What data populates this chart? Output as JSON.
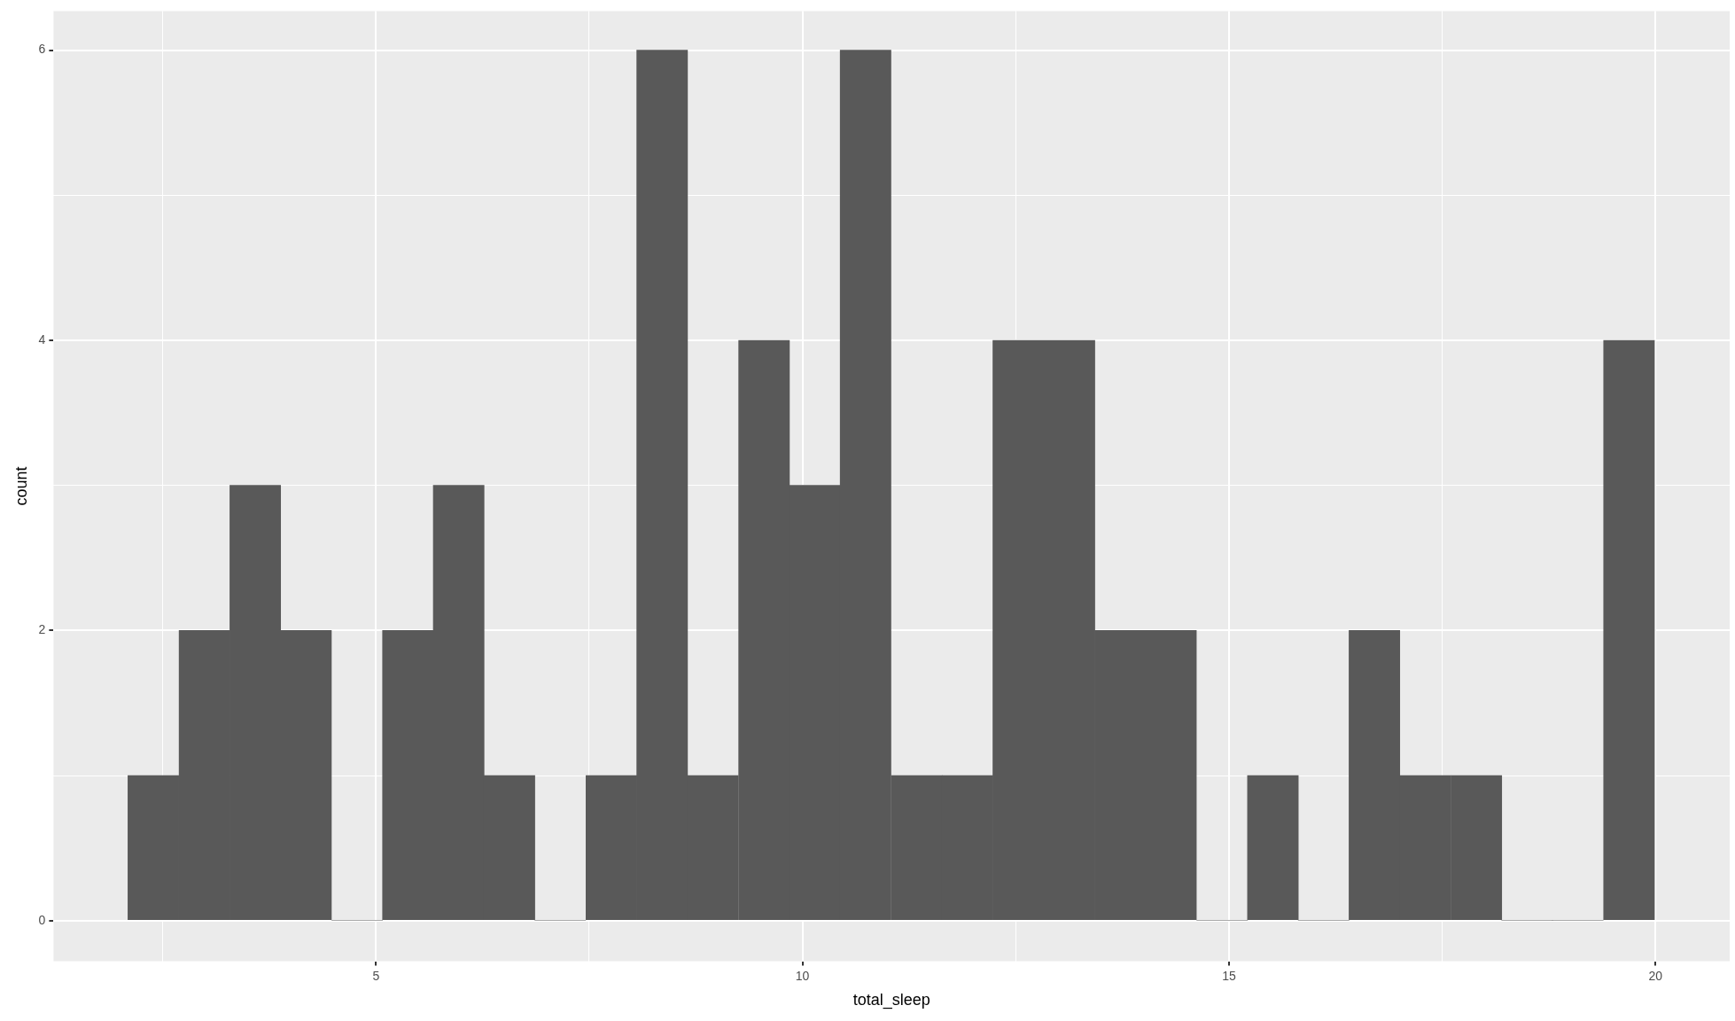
{
  "chart_data": {
    "type": "histogram",
    "xlabel": "total_sleep",
    "ylabel": "count",
    "color": "#595959",
    "bins": [
      2.09,
      2.69,
      3.29,
      3.88,
      4.48,
      5.08,
      5.67,
      6.27,
      6.86,
      7.46,
      8.06,
      8.65,
      9.25,
      9.85,
      10.44,
      11.04,
      11.64,
      12.23,
      12.83,
      13.43,
      14.02,
      14.62,
      15.22,
      15.81,
      16.41,
      17.0,
      17.6,
      18.2,
      18.79,
      19.39,
      19.99
    ],
    "values": [
      1,
      2,
      3,
      2,
      0,
      2,
      3,
      1,
      0,
      1,
      6,
      1,
      4,
      3,
      6,
      1,
      1,
      4,
      4,
      2,
      2,
      0,
      1,
      0,
      2,
      1,
      1,
      0,
      0,
      4
    ],
    "xlim": [
      1.22,
      20.87
    ],
    "ylim": [
      -0.28,
      6.27
    ],
    "xticks": [
      {
        "value": 2.5,
        "label": null
      },
      5,
      {
        "value": 7.5,
        "label": null
      },
      10,
      {
        "value": 12.5,
        "label": null
      },
      15,
      {
        "value": 17.5,
        "label": null
      },
      20
    ],
    "yticks": [
      0,
      {
        "value": 1,
        "label": null
      },
      2,
      {
        "value": 3,
        "label": null
      },
      4,
      {
        "value": 5,
        "label": null
      },
      6
    ],
    "grid": true,
    "legend": false
  }
}
